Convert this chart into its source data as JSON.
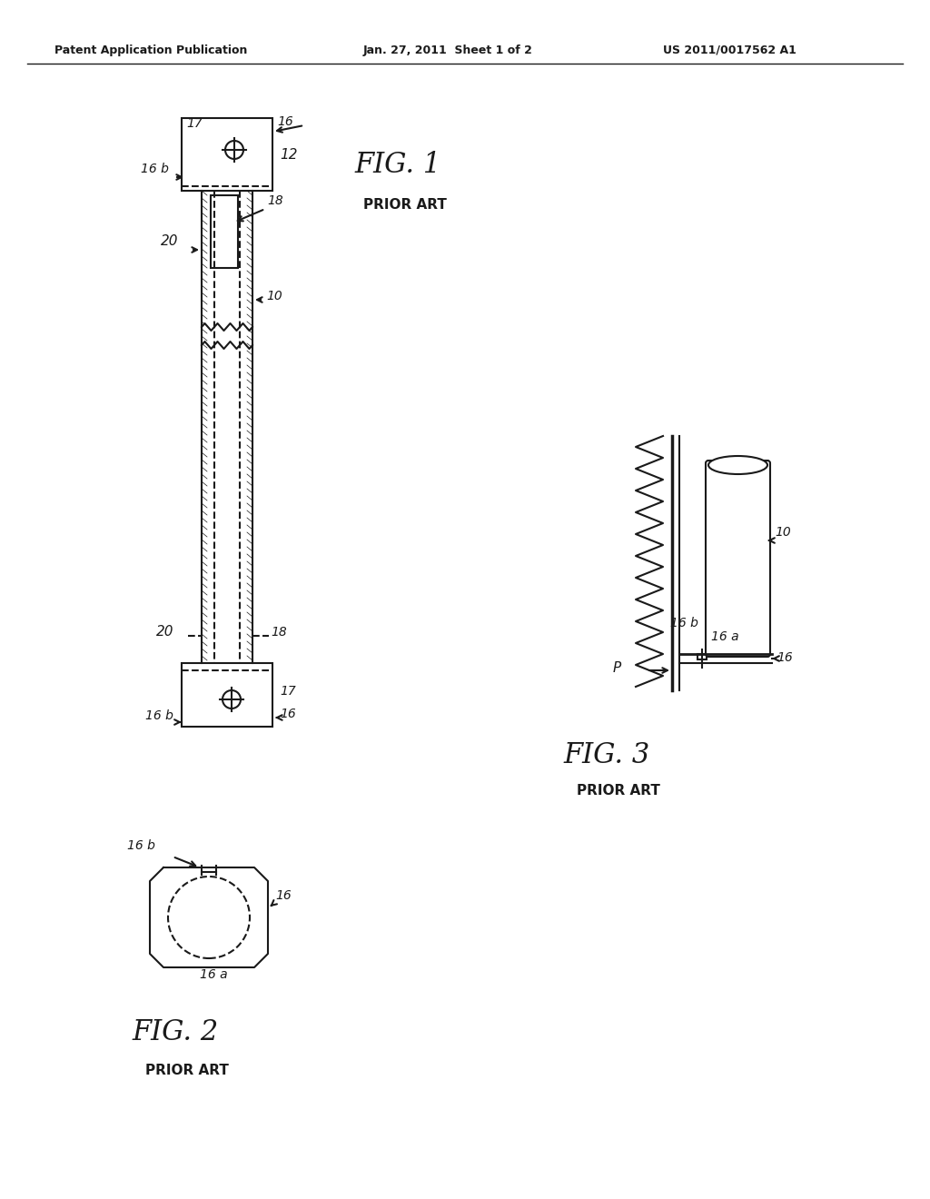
{
  "bg_color": "#ffffff",
  "header_left": "Patent Application Publication",
  "header_mid": "Jan. 27, 2011  Sheet 1 of 2",
  "header_right": "US 2011/0017562 A1",
  "fig1_title": "FIG. 1",
  "fig1_subtitle": "PRIOR ART",
  "fig2_title": "FIG. 2",
  "fig2_subtitle": "PRIOR ART",
  "fig3_title": "FIG. 3",
  "fig3_subtitle": "PRIOR ART"
}
